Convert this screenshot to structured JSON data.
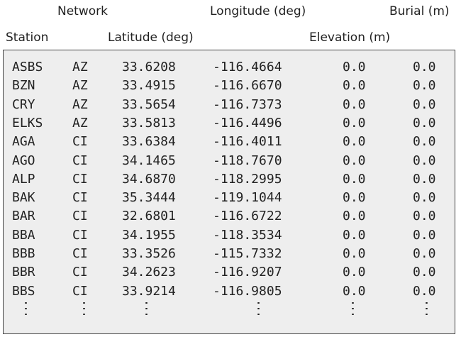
{
  "headers": {
    "network": "Network",
    "longitude": "Longitude (deg)",
    "burial": "Burial (m)",
    "station": "Station",
    "latitude": "Latitude (deg)",
    "elevation": "Elevation (m)"
  },
  "rows": [
    {
      "station": "ASBS",
      "network": "AZ",
      "latitude": "33.6208",
      "longitude": "-116.4664",
      "elevation": "0.0",
      "burial": "0.0"
    },
    {
      "station": "BZN",
      "network": "AZ",
      "latitude": "33.4915",
      "longitude": "-116.6670",
      "elevation": "0.0",
      "burial": "0.0"
    },
    {
      "station": "CRY",
      "network": "AZ",
      "latitude": "33.5654",
      "longitude": "-116.7373",
      "elevation": "0.0",
      "burial": "0.0"
    },
    {
      "station": "ELKS",
      "network": "AZ",
      "latitude": "33.5813",
      "longitude": "-116.4496",
      "elevation": "0.0",
      "burial": "0.0"
    },
    {
      "station": "AGA",
      "network": "CI",
      "latitude": "33.6384",
      "longitude": "-116.4011",
      "elevation": "0.0",
      "burial": "0.0"
    },
    {
      "station": "AGO",
      "network": "CI",
      "latitude": "34.1465",
      "longitude": "-118.7670",
      "elevation": "0.0",
      "burial": "0.0"
    },
    {
      "station": "ALP",
      "network": "CI",
      "latitude": "34.6870",
      "longitude": "-118.2995",
      "elevation": "0.0",
      "burial": "0.0"
    },
    {
      "station": "BAK",
      "network": "CI",
      "latitude": "35.3444",
      "longitude": "-119.1044",
      "elevation": "0.0",
      "burial": "0.0"
    },
    {
      "station": "BAR",
      "network": "CI",
      "latitude": "32.6801",
      "longitude": "-116.6722",
      "elevation": "0.0",
      "burial": "0.0"
    },
    {
      "station": "BBA",
      "network": "CI",
      "latitude": "34.1955",
      "longitude": "-118.3534",
      "elevation": "0.0",
      "burial": "0.0"
    },
    {
      "station": "BBB",
      "network": "CI",
      "latitude": "33.3526",
      "longitude": "-115.7332",
      "elevation": "0.0",
      "burial": "0.0"
    },
    {
      "station": "BBR",
      "network": "CI",
      "latitude": "34.2623",
      "longitude": "-116.9207",
      "elevation": "0.0",
      "burial": "0.0"
    },
    {
      "station": "BBS",
      "network": "CI",
      "latitude": "33.9214",
      "longitude": "-116.9805",
      "elevation": "0.0",
      "burial": "0.0"
    }
  ]
}
